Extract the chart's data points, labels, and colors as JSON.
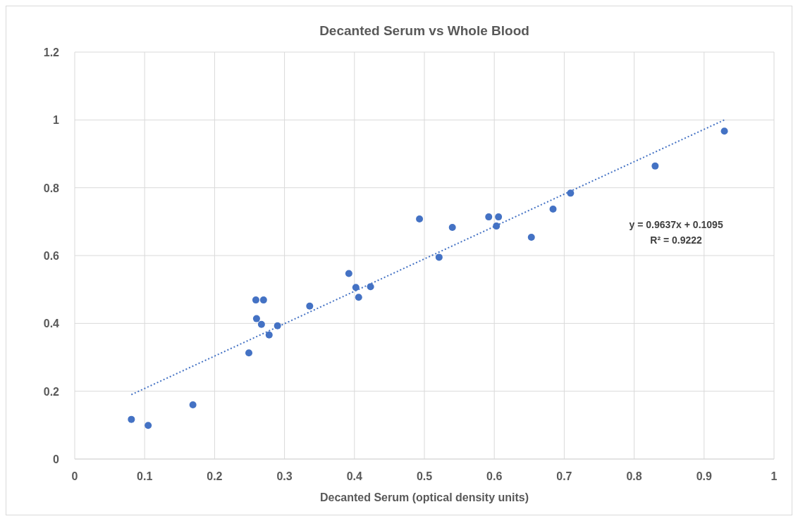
{
  "chart_data": {
    "type": "scatter",
    "title": "Decanted Serum vs Whole Blood",
    "xlabel": "Decanted Serum (optical density units)",
    "xlim": [
      0,
      1
    ],
    "xticks": [
      0,
      0.1,
      0.2,
      0.3,
      0.4,
      0.5,
      0.6,
      0.7,
      0.8,
      0.9,
      1
    ],
    "ylim": [
      0,
      1.2
    ],
    "yticks": [
      0,
      0.2,
      0.4,
      0.6,
      0.8,
      1,
      1.2
    ],
    "grid": true,
    "marker": "circle",
    "annotations": [
      "y = 0.9637x + 0.1095",
      "R² = 0.9222"
    ],
    "series": [
      {
        "color": "#4472c4",
        "x": [
          0.081,
          0.105,
          0.169,
          0.249,
          0.259,
          0.27,
          0.26,
          0.267,
          0.278,
          0.29,
          0.336,
          0.392,
          0.402,
          0.406,
          0.423,
          0.493,
          0.521,
          0.54,
          0.592,
          0.603,
          0.606,
          0.653,
          0.684,
          0.709,
          0.83,
          0.929
        ],
        "values": [
          0.117,
          0.099,
          0.16,
          0.313,
          0.469,
          0.469,
          0.414,
          0.397,
          0.366,
          0.393,
          0.451,
          0.547,
          0.506,
          0.477,
          0.508,
          0.708,
          0.595,
          0.683,
          0.714,
          0.687,
          0.714,
          0.654,
          0.737,
          0.784,
          0.864,
          0.967
        ]
      },
      {
        "type": "line",
        "color": "#4472c4",
        "line_style": "dotted",
        "marker": "none",
        "x": [
          0.081,
          0.929
        ],
        "values": [
          0.19,
          1.0
        ]
      }
    ]
  }
}
